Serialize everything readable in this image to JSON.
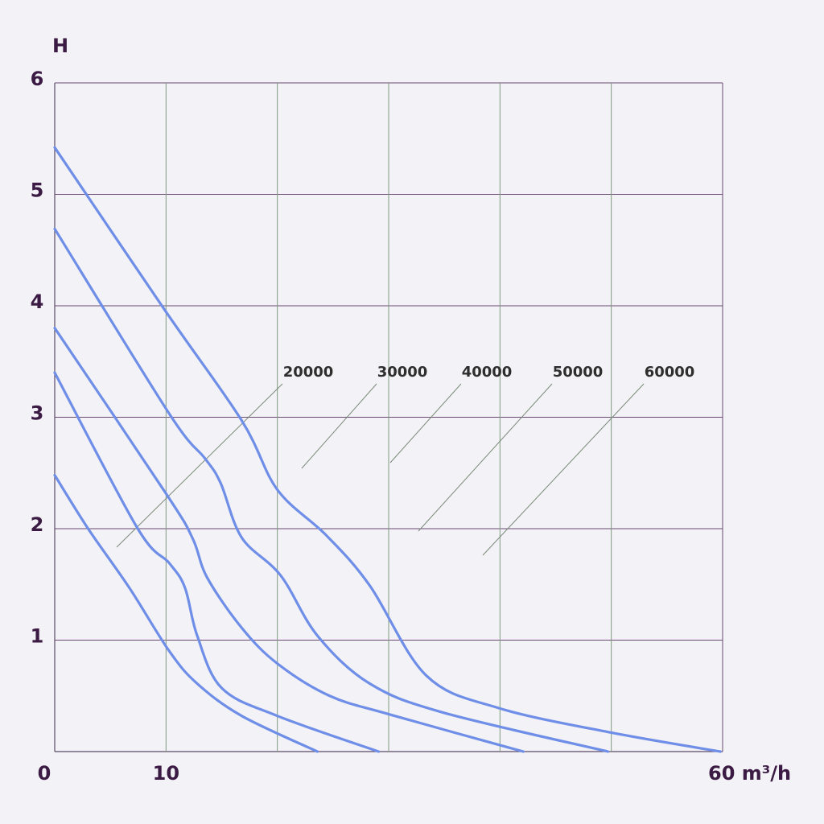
{
  "chart_data": {
    "type": "line",
    "y_label": "H",
    "xlim": [
      0,
      60
    ],
    "ylim": [
      0,
      6
    ],
    "xticks": [
      0,
      10,
      {
        "value": 60,
        "label": "60 m³/h"
      }
    ],
    "yticks": [
      1,
      2,
      3,
      4,
      5,
      6
    ],
    "x_grid": [
      10,
      20,
      30,
      40,
      50,
      60
    ],
    "grid": true,
    "series": [
      {
        "name": "20000",
        "color": "#6f8ee8",
        "x": [
          0,
          3.0,
          6.7,
          10.3,
          12.8,
          16.8,
          23.6
        ],
        "values": [
          2.48,
          2.0,
          1.47,
          0.9,
          0.61,
          0.32,
          0
        ]
      },
      {
        "name": "30000",
        "color": "#6f8ee8",
        "x": [
          0,
          7.4,
          10.3,
          11.7,
          12.8,
          15.0,
          20.0,
          29.1
        ],
        "values": [
          3.4,
          2.01,
          1.69,
          1.47,
          1.04,
          0.57,
          0.32,
          0
        ]
      },
      {
        "name": "40000",
        "color": "#6f8ee8",
        "x": [
          0,
          10.1,
          12.4,
          13.7,
          16.8,
          20.0,
          24.7,
          30.2,
          42.1
        ],
        "values": [
          3.8,
          2.3,
          1.91,
          1.56,
          1.11,
          0.79,
          0.5,
          0.33,
          0
        ]
      },
      {
        "name": "50000",
        "color": "#6f8ee8",
        "x": [
          0,
          10.3,
          13.5,
          14.9,
          16.8,
          20.3,
          23.6,
          28.3,
          34.9,
          49.7
        ],
        "values": [
          4.69,
          3.03,
          2.63,
          2.41,
          1.92,
          1.58,
          1.04,
          0.61,
          0.35,
          0
        ]
      },
      {
        "name": "60000",
        "color": "#6f8ee8",
        "x": [
          0,
          9.9,
          16.8,
          20.0,
          24.4,
          28.3,
          33.4,
          39.9,
          50.0,
          59.8
        ],
        "values": [
          5.42,
          3.96,
          2.97,
          2.35,
          1.94,
          1.49,
          0.68,
          0.39,
          0.17,
          0
        ]
      }
    ]
  }
}
